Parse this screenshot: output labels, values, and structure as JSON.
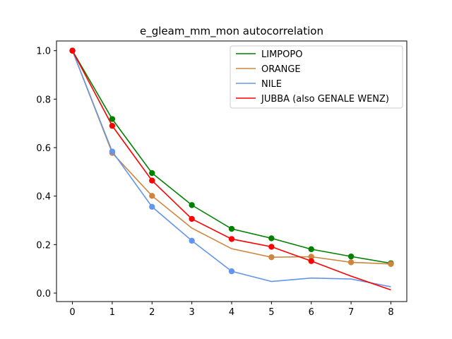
{
  "chart_data": {
    "type": "line",
    "title": "e_gleam_mm_mon autocorrelation",
    "xlabel": "",
    "ylabel": "",
    "xlim": [
      -0.4,
      8.4
    ],
    "ylim": [
      -0.035,
      1.04
    ],
    "x_ticks": [
      0,
      1,
      2,
      3,
      4,
      5,
      6,
      7,
      8
    ],
    "y_ticks": [
      0.0,
      0.2,
      0.4,
      0.6,
      0.8,
      1.0
    ],
    "grid": false,
    "legend_position": "top-right",
    "series": [
      {
        "name": "LIMPOPO",
        "color": "#008000",
        "x": [
          0,
          1,
          2,
          3,
          4,
          5,
          6,
          7,
          8
        ],
        "values": [
          1.0,
          0.718,
          0.495,
          0.363,
          0.265,
          0.226,
          0.181,
          0.151,
          0.123
        ],
        "markers": [
          true,
          true,
          true,
          true,
          true,
          true,
          true,
          true,
          true
        ]
      },
      {
        "name": "ORANGE",
        "color": "#cd853f",
        "x": [
          0,
          1,
          2,
          3,
          4,
          5,
          6,
          7,
          8
        ],
        "values": [
          1.0,
          0.578,
          0.401,
          0.268,
          0.183,
          0.148,
          0.15,
          0.127,
          0.12
        ],
        "markers": [
          true,
          true,
          true,
          false,
          false,
          true,
          true,
          true,
          true
        ]
      },
      {
        "name": "NILE",
        "color": "#6495ed",
        "x": [
          0,
          1,
          2,
          3,
          4,
          5,
          6,
          7,
          8
        ],
        "values": [
          1.0,
          0.584,
          0.356,
          0.216,
          0.09,
          0.048,
          0.062,
          0.058,
          0.026
        ],
        "markers": [
          true,
          true,
          true,
          true,
          true,
          false,
          false,
          false,
          false
        ]
      },
      {
        "name": "JUBBA (also GENALE WENZ)",
        "color": "#ff0000",
        "x": [
          0,
          1,
          2,
          3,
          4,
          5,
          6,
          7,
          8
        ],
        "values": [
          1.0,
          0.69,
          0.464,
          0.306,
          0.223,
          0.191,
          0.132,
          0.07,
          0.013
        ],
        "markers": [
          true,
          true,
          true,
          true,
          true,
          true,
          true,
          false,
          false
        ]
      }
    ]
  }
}
